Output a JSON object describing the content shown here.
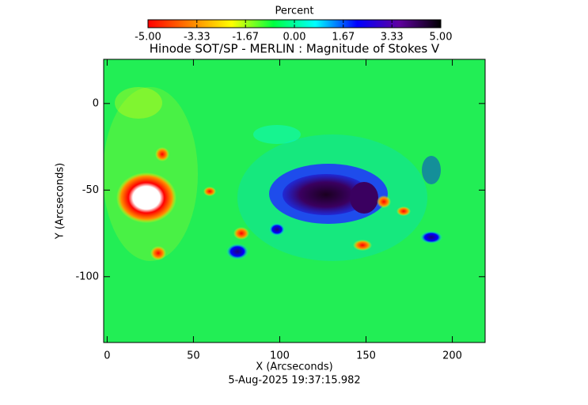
{
  "chart_data": {
    "type": "heatmap",
    "title": "Hinode SOT/SP - MERLIN : Magnitude of Stokes V",
    "xlabel": "X (Arcseconds)",
    "ylabel": "Y (Arcseconds)",
    "footer": "5-Aug-2025 19:37:15.982",
    "xlim": [
      -2,
      219
    ],
    "ylim": [
      -138,
      25.5
    ],
    "xticks": [
      0,
      50,
      100,
      150,
      200
    ],
    "yticks": [
      0,
      -50,
      -100
    ],
    "colorbar": {
      "title": "Percent",
      "lim": [
        -5,
        5
      ],
      "ticks": [
        {
          "value": -5,
          "label": "-5.00"
        },
        {
          "value": -3.33,
          "label": "-3.33"
        },
        {
          "value": -1.67,
          "label": "-1.67"
        },
        {
          "value": 0,
          "label": "0.00"
        },
        {
          "value": 1.67,
          "label": "1.67"
        },
        {
          "value": 3.33,
          "label": "3.33"
        },
        {
          "value": 5,
          "label": "5.00"
        }
      ],
      "colors": [
        "#ff0000",
        "#ff8000",
        "#ffff00",
        "#00ff40",
        "#00ffff",
        "#0000ff",
        "#6000a0",
        "#000000"
      ]
    }
  }
}
